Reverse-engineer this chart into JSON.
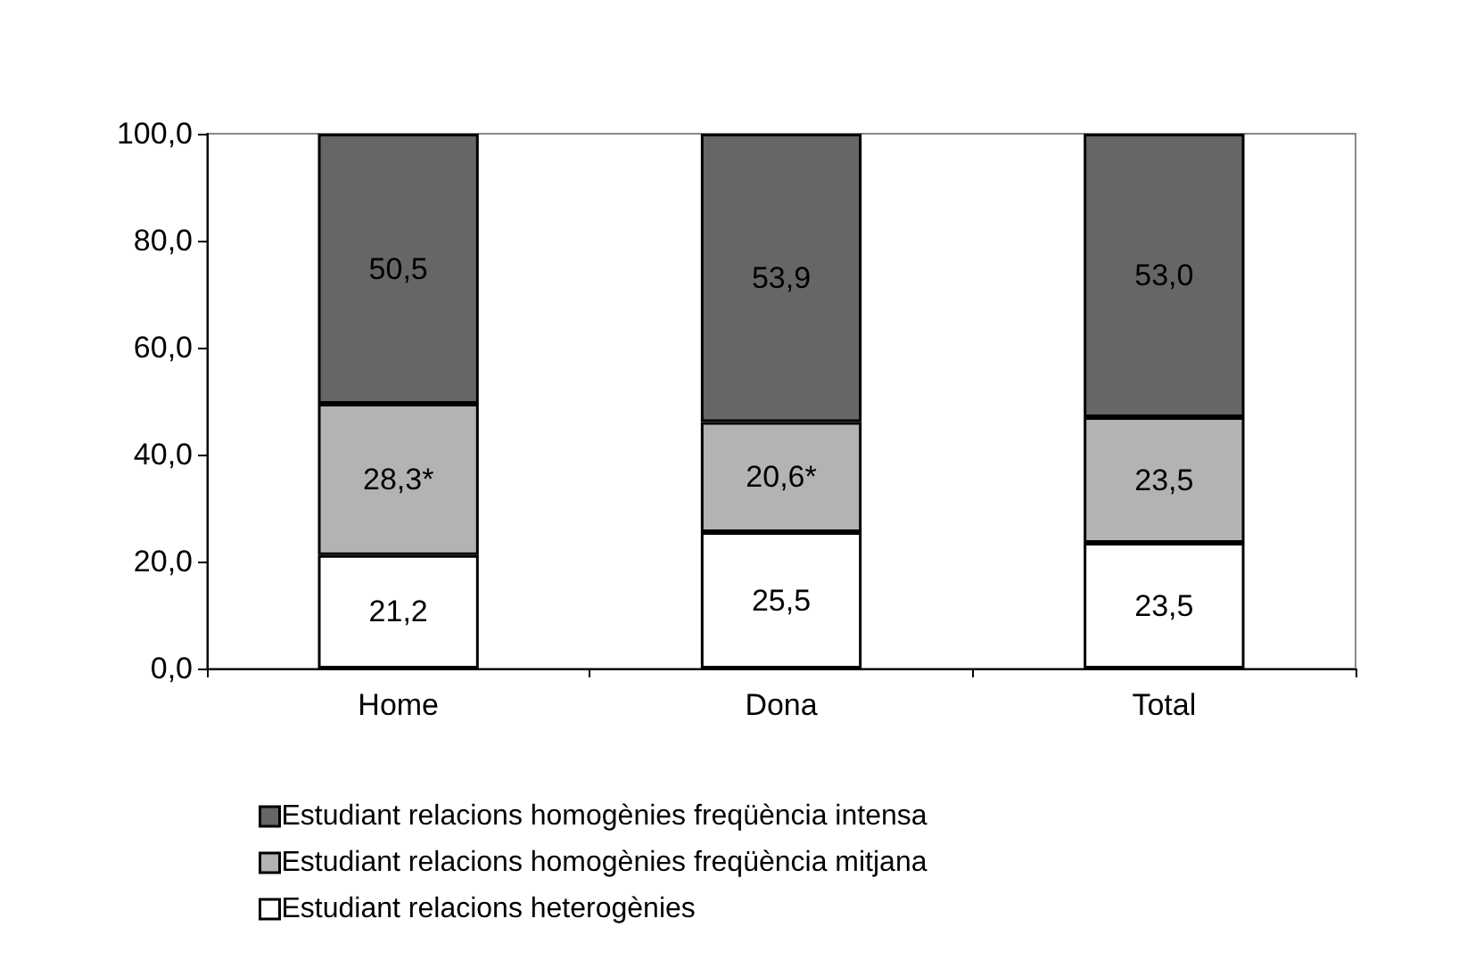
{
  "chart_data": {
    "type": "bar",
    "stacked": true,
    "categories": [
      "Home",
      "Dona",
      "Total"
    ],
    "series": [
      {
        "name": "Estudiant relacions heterogènies",
        "color": "#ffffff",
        "values": [
          21.2,
          25.5,
          23.5
        ],
        "value_labels": [
          "21,2",
          "25,5",
          "23,5"
        ]
      },
      {
        "name": "Estudiant relacions homogènies freqüència mitjana",
        "color": "#b3b3b3",
        "values": [
          28.3,
          20.6,
          23.5
        ],
        "value_labels": [
          "28,3*",
          "20,6*",
          "23,5"
        ]
      },
      {
        "name": "Estudiant relacions homogènies freqüència intensa",
        "color": "#666666",
        "values": [
          50.5,
          53.9,
          53.0
        ],
        "value_labels": [
          "50,5",
          "53,9",
          "53,0"
        ]
      }
    ],
    "ylim": [
      0,
      100
    ],
    "yticks": [
      {
        "value": 0,
        "label": "0,0"
      },
      {
        "value": 20,
        "label": "20,0"
      },
      {
        "value": 40,
        "label": "40,0"
      },
      {
        "value": 60,
        "label": "60,0"
      },
      {
        "value": 80,
        "label": "80,0"
      },
      {
        "value": 100,
        "label": "100,0"
      }
    ],
    "grid": false,
    "legend": "bottom"
  }
}
